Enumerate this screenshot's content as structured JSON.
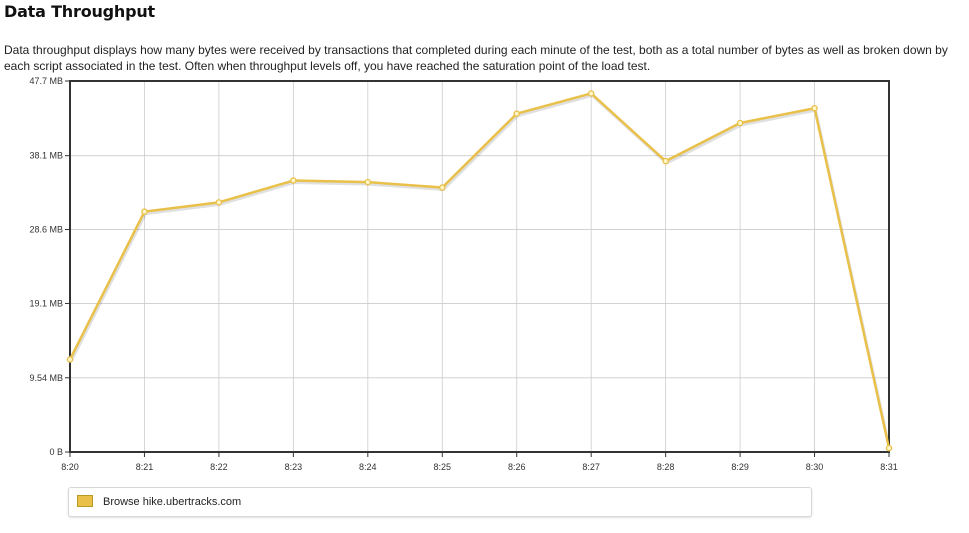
{
  "header": {
    "title": "Data Throughput",
    "description": "Data throughput displays how many bytes were received by transactions that completed during each minute of the test, both as a total number of bytes as well as broken down by each script associated in the test. Often when throughput levels off, you have reached the saturation point of the load test."
  },
  "colors": {
    "series": "#e8c04a",
    "marker_fill": "#fff5c6",
    "grid": "#cccccc",
    "axis": "#333333"
  },
  "chart_data": {
    "type": "line",
    "title": "",
    "xlabel": "",
    "ylabel": "",
    "categories": [
      "8:20",
      "8:21",
      "8:22",
      "8:23",
      "8:24",
      "8:25",
      "8:26",
      "8:27",
      "8:28",
      "8:29",
      "8:30",
      "8:31"
    ],
    "ylim": [
      0,
      47.7
    ],
    "yticks": [
      {
        "value": 0,
        "label": "0 B"
      },
      {
        "value": 9.54,
        "label": "9.54 MB"
      },
      {
        "value": 19.1,
        "label": "19.1 MB"
      },
      {
        "value": 28.6,
        "label": "28.6 MB"
      },
      {
        "value": 38.1,
        "label": "38.1 MB"
      },
      {
        "value": 47.7,
        "label": "47.7 MB"
      }
    ],
    "grid": true,
    "legend_position": "bottom",
    "series": [
      {
        "name": "Browse hike.ubertracks.com",
        "values": [
          11.9,
          30.9,
          32.1,
          34.9,
          34.7,
          34.0,
          43.5,
          46.1,
          37.4,
          42.3,
          44.2,
          0.5
        ]
      }
    ]
  }
}
